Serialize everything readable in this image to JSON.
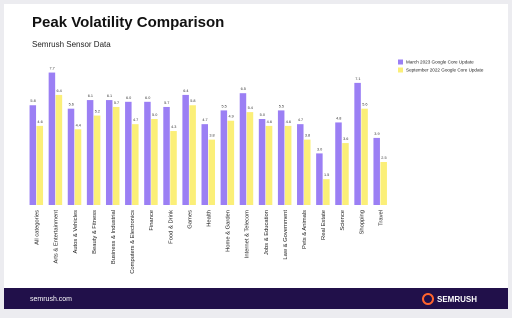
{
  "chart_data": {
    "type": "bar",
    "title": "Peak Volatility Comparison",
    "subtitle": "Semrush Sensor Data",
    "categories": [
      "All categories",
      "Arts & Entertainment",
      "Autos & Vehicles",
      "Beauty & Fitness",
      "Business & Industrial",
      "Computers & Electronics",
      "Finance",
      "Food & Drink",
      "Games",
      "Health",
      "Home & Garden",
      "Internet & Telecom",
      "Jobs & Education",
      "Law & Government",
      "Pets & Animals",
      "Real Estate",
      "Science",
      "Shopping",
      "Travel"
    ],
    "series": [
      {
        "name": "March 2023 Google Core Update",
        "color": "#9b7ff4",
        "values": [
          5.8,
          7.7,
          5.6,
          6.1,
          6.1,
          6.0,
          6.0,
          5.7,
          6.4,
          4.7,
          5.5,
          6.5,
          5.0,
          5.5,
          4.7,
          3.0,
          4.8,
          7.1,
          3.9
        ],
        "value_labels": [
          "5.8",
          "7.7",
          "5.6",
          "6.1",
          "6.1",
          "6.0",
          "6.0",
          "5.7",
          "6.4",
          "4.7",
          "5.5",
          "6.5",
          "5.0",
          "5.5",
          "4.7",
          "3.0",
          "4.8",
          "7.1",
          "3.9"
        ]
      },
      {
        "name": "September 2022 Google Core Update",
        "color": "#fbef78",
        "values": [
          4.6,
          6.4,
          4.4,
          5.2,
          5.7,
          4.7,
          5.0,
          4.3,
          5.8,
          3.8,
          4.9,
          5.4,
          4.6,
          4.6,
          3.8,
          1.5,
          3.6,
          5.6,
          2.5
        ],
        "value_labels": [
          "4.6",
          "6.4",
          "4.4",
          "5.2",
          "5.7",
          "4.7",
          "5.0",
          "4.3",
          "5.8",
          "3.8",
          "4.9",
          "5.4",
          "4.6",
          "4.6",
          "3.8",
          "1.5",
          "3.6",
          "5.6",
          "2.5"
        ]
      }
    ],
    "legend": "top-right"
  },
  "footer": {
    "url": "semrush.com",
    "brand": "SEMRUSH"
  }
}
